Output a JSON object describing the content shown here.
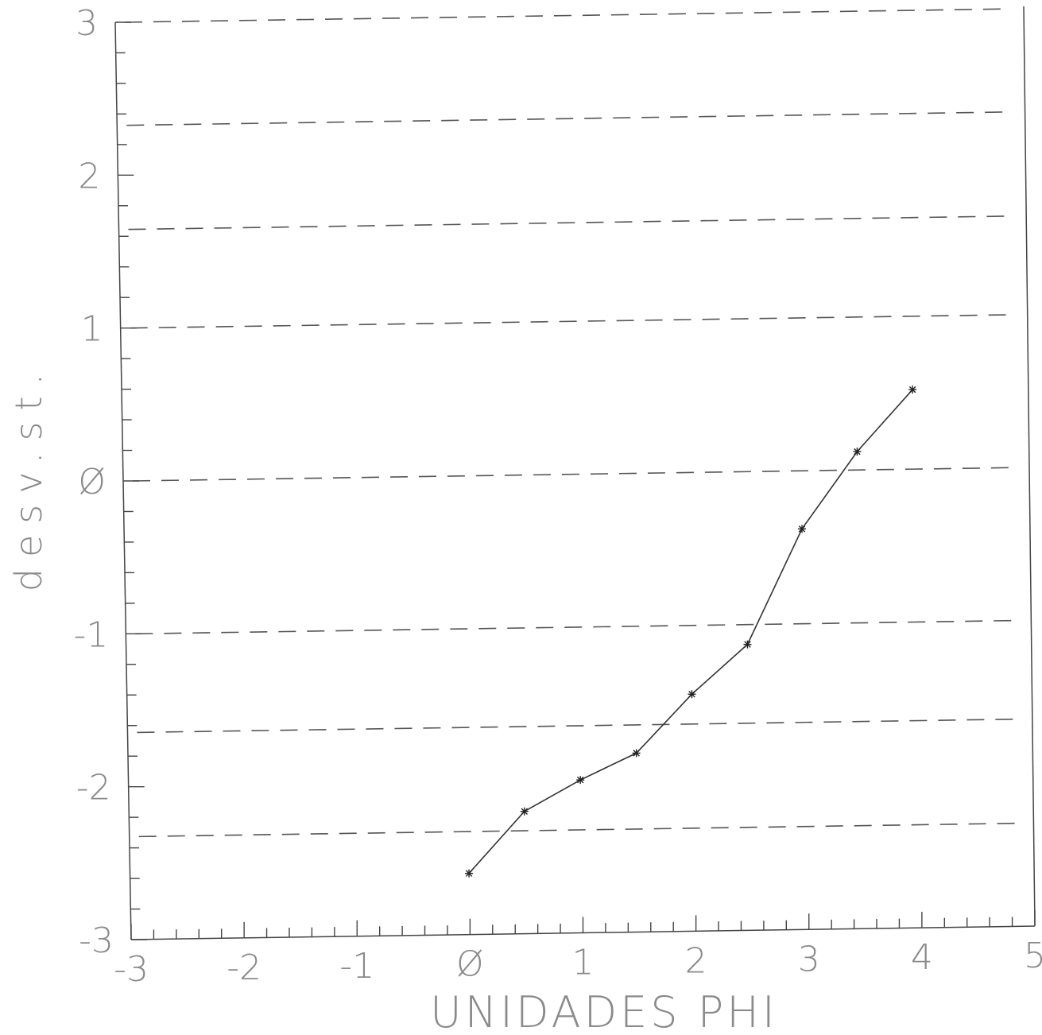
{
  "chart_data": {
    "type": "line",
    "title": "",
    "xlabel": "UNIDADES PHI",
    "ylabel": "desv.st.",
    "xlim": [
      -3,
      5
    ],
    "ylim": [
      -3,
      3
    ],
    "x_ticks": [
      -3,
      -2,
      -1,
      0,
      1,
      2,
      3,
      4,
      5
    ],
    "x_tick_labels": [
      "-3",
      "-2",
      "-1",
      "Ø",
      "1",
      "2",
      "3",
      "4",
      "5"
    ],
    "y_ticks": [
      -3,
      -2,
      -1,
      0,
      1,
      2,
      3
    ],
    "y_tick_labels": [
      "-3",
      "-2",
      "-1",
      "Ø",
      "1",
      "2",
      "3"
    ],
    "reference_lines_y": [
      3,
      2.326,
      1.645,
      1,
      0,
      -1,
      -1.645,
      -2.326
    ],
    "series": [
      {
        "x": [
          0,
          0.5,
          1,
          1.5,
          2,
          2.5,
          3,
          3.5,
          4
        ],
        "y": [
          -2.6,
          -2.2,
          -2.0,
          -1.83,
          -1.45,
          -1.13,
          -0.38,
          0.12,
          0.52
        ],
        "marker": "asterisk"
      }
    ],
    "grid": false,
    "colors": {
      "line": "#333333",
      "reference": "#555555",
      "text": "#8a8a8a"
    }
  }
}
